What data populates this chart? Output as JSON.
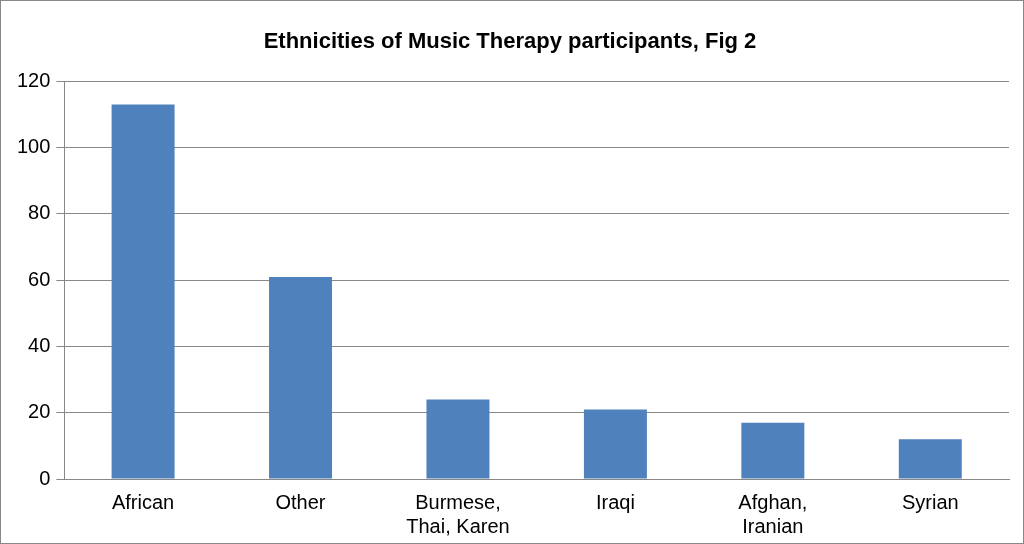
{
  "chart_data": {
    "type": "bar",
    "title": "Ethnicities of Music Therapy participants, Fig 2",
    "categories": [
      "African",
      "Other",
      "Burmese, Thai, Karen",
      "Iraqi",
      "Afghan, Iranian",
      "Syrian"
    ],
    "values": [
      113,
      61,
      24,
      21,
      17,
      12
    ],
    "color": "#4f81bd",
    "ylim": [
      0,
      120
    ],
    "yticks": [
      0,
      20,
      40,
      60,
      80,
      100,
      120
    ],
    "grid": "y",
    "legend": false
  }
}
